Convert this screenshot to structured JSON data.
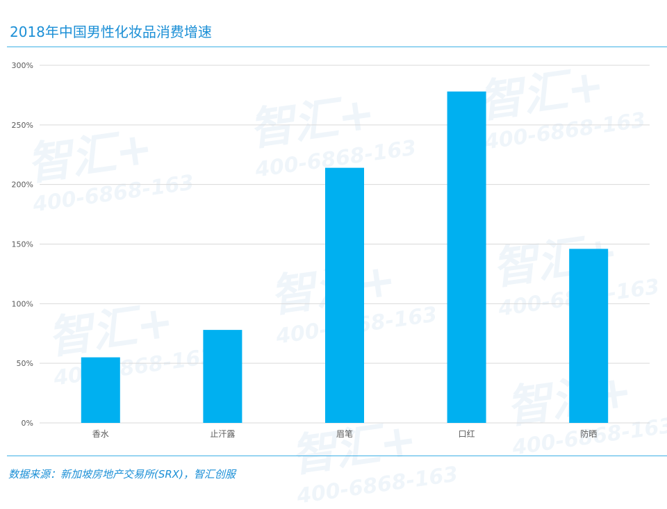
{
  "header": {
    "title": "2018年中国男性化妆品消费增速"
  },
  "footer": {
    "source": "数据来源：新加坡房地产交易所(SRX)，智汇创服"
  },
  "watermark": {
    "brand": "智汇+",
    "phone": "400-6868-163"
  },
  "colors": {
    "bar": "#00b0f0",
    "accent": "#1b8fd6",
    "grid": "#d9d9d9"
  },
  "chart_data": {
    "type": "bar",
    "title": "2018年中国男性化妆品消费增速",
    "categories": [
      "香水",
      "止汗露",
      "眉笔",
      "口红",
      "防晒"
    ],
    "values": [
      55,
      78,
      214,
      278,
      146
    ],
    "unit": "%",
    "ylim": [
      0,
      300
    ],
    "yticks": [
      0,
      50,
      100,
      150,
      200,
      250,
      300
    ],
    "ytick_labels": [
      "0%",
      "50%",
      "100%",
      "150%",
      "200%",
      "250%",
      "300%"
    ],
    "grid": true,
    "legend": "none"
  }
}
